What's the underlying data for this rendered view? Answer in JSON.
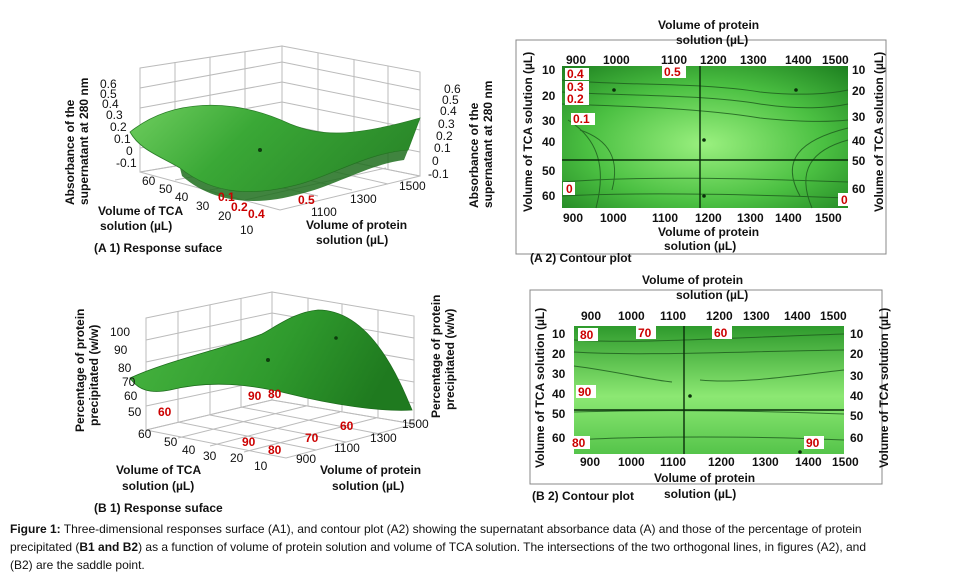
{
  "panels": {
    "a1": {
      "label": "(A 1) Response suface",
      "z_left_label_1": "Absorbance of the",
      "z_left_label_2": "supernatant at 280 nm",
      "z_right_label_1": "Absorbance of the",
      "z_right_label_2": "supernatant at 280 nm",
      "z_ticks": [
        "0.6",
        "0.5",
        "0.4",
        "0.3",
        "0.2",
        "0.1",
        "0",
        "-0.1"
      ],
      "tca_axis_1": "Volume of TCA",
      "tca_axis_2": "solution  (µL)",
      "tca_ticks": [
        "60",
        "50",
        "40",
        "30",
        "20",
        "10"
      ],
      "protein_axis_1": "Volume of protein",
      "protein_axis_2": "solution  (µL)",
      "protein_ticks": [
        "1500",
        "1300",
        "1100"
      ],
      "contour_labels": [
        "0.1",
        "0.2",
        "0.4",
        "0.5"
      ]
    },
    "a2": {
      "label": "(A 2) Contour plot",
      "top_title_1": "Volume of protein",
      "top_title_2": "solution  (µL)",
      "bottom_title_1": "Volume of protein",
      "bottom_title_2": "solution  (µL)",
      "x_ticks": [
        "900",
        "1000",
        "1100",
        "1200",
        "1300",
        "1400",
        "1500"
      ],
      "y_ticks": [
        "10",
        "20",
        "30",
        "40",
        "50",
        "60"
      ],
      "y_left_title": "Volume of TCA solution (µL)",
      "y_right_title": "Volume of TCA solution (µL)",
      "contour_labels": [
        "0.4",
        "0.3",
        "0.2",
        "0.1",
        "0.5",
        "0",
        "0"
      ]
    },
    "b1": {
      "label": "(B 1) Response suface",
      "z_left_label_1": "Percentage of protein",
      "z_left_label_2": "precipitated (w/w)",
      "z_right_label_1": "Percentage of protein",
      "z_right_label_2": "precipitated (w/w)",
      "z_ticks": [
        "100",
        "90",
        "80",
        "70",
        "60",
        "50"
      ],
      "tca_axis_1": "Volume of TCA",
      "tca_axis_2": "solution (µL)",
      "tca_ticks": [
        "60",
        "50",
        "40",
        "30",
        "20",
        "10"
      ],
      "protein_axis_1": "Volume of protein",
      "protein_axis_2": "solution (µL)",
      "protein_ticks": [
        "1500",
        "1300",
        "1100",
        "900"
      ],
      "contour_labels": [
        "60",
        "90",
        "80",
        "90",
        "80",
        "70",
        "60"
      ]
    },
    "b2": {
      "label": "(B 2) Contour plot",
      "top_title_1": "Volume of protein",
      "top_title_2": "solution  (µL)",
      "bottom_title_1": "Volume of protein",
      "bottom_title_2": "solution  (µL)",
      "x_ticks": [
        "900",
        "1000",
        "1100",
        "1200",
        "1300",
        "1400",
        "1500"
      ],
      "y_ticks": [
        "10",
        "20",
        "30",
        "40",
        "50",
        "60"
      ],
      "y_left_title": "Volume of TCA solution (µL)",
      "y_right_title": "Volume of TCA solution (µL)",
      "contour_labels": [
        "80",
        "70",
        "60",
        "90",
        "80",
        "90"
      ]
    }
  },
  "caption": {
    "lead": "Figure 1:",
    "text_1": " Three-dimensional responses surface (A1), and contour plot (A2) showing the supernatant absorbance data (A) and those of the percentage of protein",
    "text_2a": "precipitated (",
    "text_2b": "B1 and B2",
    "text_2c": ") as a function of volume of protein solution and volume of TCA solution. The intersections of the two orthogonal lines, in figures (A2), and",
    "text_3": "(B2) are the saddle point."
  },
  "colors": {
    "surface_light": "#8ee07e",
    "surface_mid": "#3fae3a",
    "surface_dark": "#1f7a1f",
    "contour_bg_light": "#7ce26a",
    "contour_bg_dark": "#1f8a22",
    "label_red": "#cc0000",
    "grid": "#bbbbbb"
  }
}
